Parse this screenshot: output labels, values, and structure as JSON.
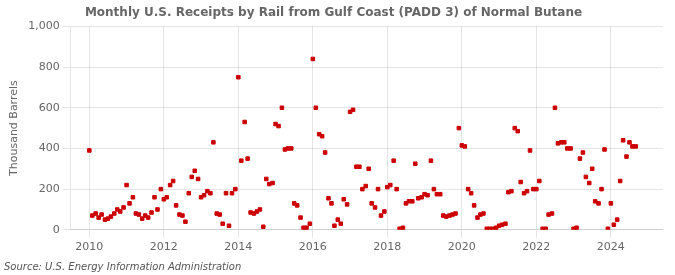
{
  "chart_data": {
    "type": "scatter",
    "title": "Monthly U.S. Receipts by Rail from Gulf Coast (PADD 3) of Normal Butane",
    "ylabel": "Thousand Barrels",
    "annotations": [
      "Source: U.S. Energy Information Administration"
    ],
    "color": "#cc0000",
    "marker": "square",
    "grid": true,
    "xlim": [
      2009.5,
      2025.4
    ],
    "xticks": [
      2010,
      2012,
      2014,
      2016,
      2018,
      2020,
      2022,
      2024
    ],
    "ylim": [
      0,
      1000
    ],
    "yticks": [
      0,
      200,
      400,
      600,
      800,
      {
        "value": 1000,
        "label": "1,000"
      }
    ],
    "x": [
      2010.0,
      2010.08,
      2010.17,
      2010.25,
      2010.33,
      2010.42,
      2010.5,
      2010.58,
      2010.67,
      2010.75,
      2010.83,
      2010.92,
      2011.0,
      2011.08,
      2011.17,
      2011.25,
      2011.33,
      2011.42,
      2011.5,
      2011.58,
      2011.67,
      2011.75,
      2011.83,
      2011.92,
      2012.0,
      2012.08,
      2012.17,
      2012.25,
      2012.33,
      2012.42,
      2012.5,
      2012.58,
      2012.67,
      2012.75,
      2012.83,
      2012.92,
      2013.0,
      2013.08,
      2013.17,
      2013.25,
      2013.33,
      2013.42,
      2013.5,
      2013.58,
      2013.67,
      2013.75,
      2013.83,
      2013.92,
      2014.0,
      2014.08,
      2014.17,
      2014.25,
      2014.33,
      2014.42,
      2014.5,
      2014.58,
      2014.67,
      2014.75,
      2014.83,
      2014.92,
      2015.0,
      2015.08,
      2015.17,
      2015.25,
      2015.33,
      2015.42,
      2015.5,
      2015.58,
      2015.67,
      2015.75,
      2015.83,
      2015.92,
      2016.0,
      2016.08,
      2016.17,
      2016.25,
      2016.33,
      2016.42,
      2016.5,
      2016.58,
      2016.67,
      2016.75,
      2016.83,
      2016.92,
      2017.0,
      2017.08,
      2017.17,
      2017.25,
      2017.33,
      2017.42,
      2017.5,
      2017.58,
      2017.67,
      2017.75,
      2017.83,
      2017.92,
      2018.0,
      2018.08,
      2018.17,
      2018.25,
      2018.33,
      2018.42,
      2018.5,
      2018.58,
      2018.67,
      2018.75,
      2018.83,
      2018.92,
      2019.0,
      2019.08,
      2019.17,
      2019.25,
      2019.33,
      2019.42,
      2019.5,
      2019.58,
      2019.67,
      2019.75,
      2019.83,
      2019.92,
      2020.0,
      2020.08,
      2020.17,
      2020.25,
      2020.33,
      2020.42,
      2020.5,
      2020.58,
      2020.67,
      2020.75,
      2020.83,
      2020.92,
      2021.0,
      2021.08,
      2021.17,
      2021.25,
      2021.33,
      2021.42,
      2021.5,
      2021.58,
      2021.67,
      2021.75,
      2021.83,
      2021.92,
      2022.0,
      2022.08,
      2022.17,
      2022.25,
      2022.33,
      2022.42,
      2022.5,
      2022.58,
      2022.67,
      2022.75,
      2022.83,
      2022.92,
      2023.0,
      2023.08,
      2023.17,
      2023.25,
      2023.33,
      2023.42,
      2023.5,
      2023.58,
      2023.67,
      2023.75,
      2023.83,
      2023.92,
      2024.0,
      2024.08,
      2024.17,
      2024.25,
      2024.33,
      2024.42,
      2024.5,
      2024.58,
      2024.67
    ],
    "values": [
      390,
      70,
      80,
      60,
      75,
      50,
      55,
      65,
      80,
      100,
      90,
      110,
      220,
      130,
      160,
      80,
      75,
      55,
      70,
      60,
      85,
      160,
      100,
      200,
      150,
      160,
      220,
      240,
      120,
      75,
      70,
      40,
      180,
      260,
      290,
      250,
      160,
      170,
      190,
      180,
      430,
      80,
      75,
      30,
      180,
      20,
      180,
      200,
      750,
      340,
      530,
      350,
      85,
      80,
      90,
      100,
      15,
      250,
      225,
      230,
      520,
      510,
      600,
      395,
      400,
      400,
      130,
      120,
      60,
      10,
      10,
      30,
      840,
      600,
      470,
      460,
      380,
      155,
      130,
      20,
      50,
      30,
      150,
      125,
      580,
      590,
      310,
      310,
      200,
      215,
      300,
      130,
      110,
      200,
      70,
      90,
      210,
      220,
      340,
      200,
      5,
      10,
      130,
      140,
      140,
      325,
      155,
      160,
      175,
      170,
      340,
      200,
      175,
      175,
      70,
      65,
      70,
      75,
      80,
      500,
      415,
      410,
      200,
      180,
      120,
      60,
      75,
      80,
      5,
      5,
      5,
      10,
      20,
      25,
      30,
      185,
      190,
      500,
      485,
      235,
      180,
      190,
      390,
      200,
      200,
      240,
      5,
      5,
      75,
      80,
      600,
      425,
      430,
      430,
      400,
      400,
      5,
      10,
      350,
      380,
      260,
      230,
      300,
      140,
      130,
      200,
      395,
      5,
      130,
      25,
      50,
      240,
      440,
      360,
      430,
      410,
      410
    ]
  }
}
